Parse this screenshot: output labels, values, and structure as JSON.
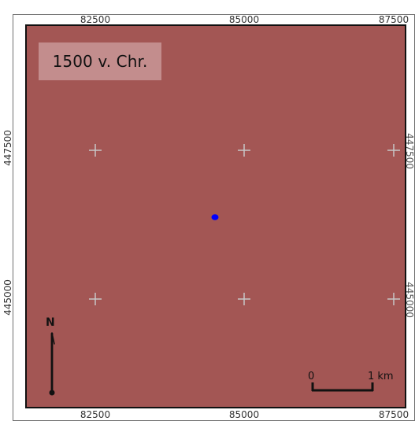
{
  "map": {
    "date_label": "1500 v. Chr.",
    "north_label": "N",
    "scale_bar": {
      "start_label": "0",
      "end_label": "1 km"
    },
    "axes": {
      "x_ticks": [
        "82500",
        "85000",
        "87500"
      ],
      "y_ticks": [
        "447500",
        "445000"
      ]
    },
    "colors": {
      "land": "#a35654",
      "frame": "#111111",
      "date_box": "#debcbc",
      "marker": "#0000ff",
      "grid_cross": "#c7c7c7"
    },
    "marker": {
      "type": "point",
      "icon": "blue-dot-icon"
    }
  }
}
